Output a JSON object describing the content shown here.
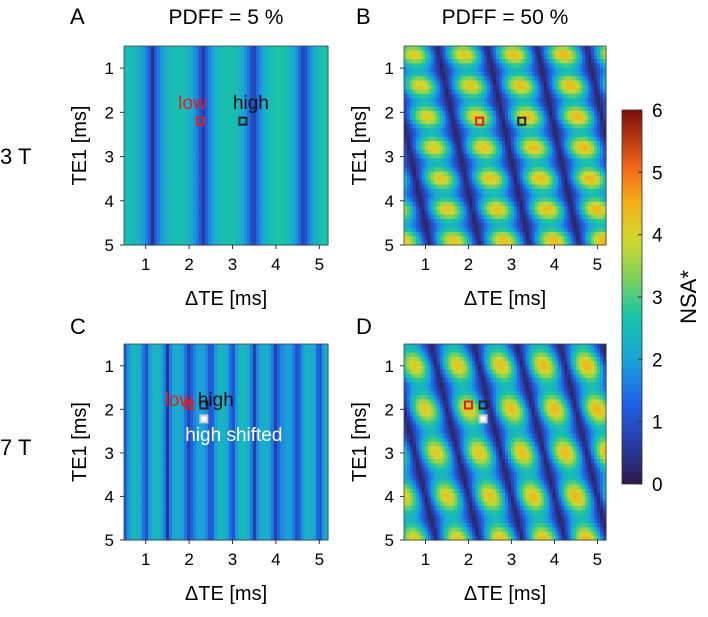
{
  "figure": {
    "row_labels": [
      "3 T",
      "7 T"
    ],
    "colorbar": {
      "label": "NSA*",
      "min": 0,
      "max": 6,
      "ticks": [
        "0",
        "1",
        "2",
        "3",
        "4",
        "5",
        "6"
      ]
    }
  },
  "chart_data": [
    {
      "type": "heatmap",
      "panel": "A",
      "title": "PDFF = 5 %",
      "field": "3 T",
      "xlabel": "ΔTE [ms]",
      "ylabel": "TE1 [ms]",
      "xlim": [
        0.5,
        5.2
      ],
      "ylim": [
        0.5,
        5
      ],
      "xticks": [
        "1",
        "2",
        "3",
        "4",
        "5"
      ],
      "yticks": [
        "1",
        "2",
        "3",
        "4",
        "5"
      ],
      "color_range": [
        0,
        6
      ],
      "pattern": {
        "period_dte": 1.16,
        "null_dte": 1.16,
        "pdff": 0.05,
        "te1_slope": 0,
        "te1_period": 0
      },
      "markers": [
        {
          "label": "low",
          "dte": 2.26,
          "te1": 2.2,
          "color": "#e02020"
        },
        {
          "label": "high",
          "dte": 3.24,
          "te1": 2.2,
          "color": "#222222"
        }
      ]
    },
    {
      "type": "heatmap",
      "panel": "B",
      "title": "PDFF = 50 %",
      "field": "3 T",
      "xlabel": "ΔTE [ms]",
      "ylabel": "TE1 [ms]",
      "xlim": [
        0.5,
        5.2
      ],
      "ylim": [
        0.5,
        5
      ],
      "xticks": [
        "1",
        "2",
        "3",
        "4",
        "5"
      ],
      "yticks": [
        "1",
        "2",
        "3",
        "4",
        "5"
      ],
      "color_range": [
        0,
        6
      ],
      "pattern": {
        "period_dte": 1.16,
        "null_dte": 1.16,
        "pdff": 0.5,
        "te1_slope": 0.22,
        "te1_period": 0.7
      },
      "markers": [
        {
          "label": "",
          "dte": 2.26,
          "te1": 2.2,
          "color": "#e02020"
        },
        {
          "label": "",
          "dte": 3.24,
          "te1": 2.2,
          "color": "#222222"
        }
      ]
    },
    {
      "type": "heatmap",
      "panel": "C",
      "title": "",
      "field": "7 T",
      "xlabel": "ΔTE [ms]",
      "ylabel": "TE1 [ms]",
      "xlim": [
        0.5,
        5.2
      ],
      "ylim": [
        0.5,
        5
      ],
      "xticks": [
        "1",
        "2",
        "3",
        "4",
        "5"
      ],
      "yticks": [
        "1",
        "2",
        "3",
        "4",
        "5"
      ],
      "color_range": [
        0,
        6
      ],
      "pattern": {
        "period_dte": 0.5,
        "null_dte": 1.0,
        "pdff": 0.05,
        "te1_slope": 0,
        "te1_period": 0
      },
      "markers": [
        {
          "label": "low",
          "dte": 2.0,
          "te1": 1.9,
          "color": "#e02020"
        },
        {
          "label": "high",
          "dte": 2.34,
          "te1": 1.9,
          "color": "#222222"
        },
        {
          "label": "high shifted",
          "dte": 2.34,
          "te1": 2.22,
          "color": "#ffffff"
        }
      ]
    },
    {
      "type": "heatmap",
      "panel": "D",
      "title": "",
      "field": "7 T",
      "xlabel": "ΔTE [ms]",
      "ylabel": "TE1 [ms]",
      "xlim": [
        0.5,
        5.2
      ],
      "ylim": [
        0.5,
        5
      ],
      "xticks": [
        "1",
        "2",
        "3",
        "4",
        "5"
      ],
      "yticks": [
        "1",
        "2",
        "3",
        "4",
        "5"
      ],
      "color_range": [
        0,
        6
      ],
      "pattern": {
        "period_dte": 1.0,
        "null_dte": 1.0,
        "pdff": 0.5,
        "te1_slope": 0.25,
        "te1_period": 1.0
      },
      "markers": [
        {
          "label": "",
          "dte": 2.0,
          "te1": 1.9,
          "color": "#e02020"
        },
        {
          "label": "",
          "dte": 2.34,
          "te1": 1.9,
          "color": "#222222"
        },
        {
          "label": "",
          "dte": 2.34,
          "te1": 2.22,
          "color": "#ffffff"
        }
      ]
    }
  ]
}
